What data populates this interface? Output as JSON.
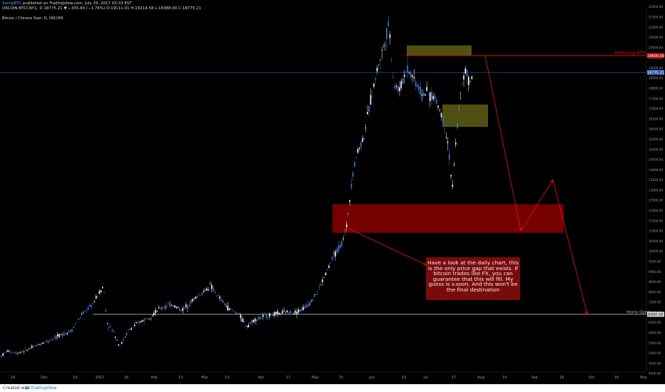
{
  "header": {
    "author": "SwingBTC",
    "published": "published on TradingView.com, July 29, 2017 03:33 EST",
    "ticker_line": "OKCOIN:BTCCNY1, D  18775.21 ▼ −335.80 (−1.76%)  O:19111.01 H:19214.58 L:18388.00 C:18775.21",
    "symbol_title": "Bitcoin / Chinese Yuan, D, OKCOIN"
  },
  "annotations": {
    "note": "Have a look at the daily chart, this is the only price gap that exists. If bitcoin trades like FX, you can guarantee that this will fill. My guess is v.soon. And this won't be the final destination",
    "level_label": "Bitstamp ATH",
    "yearly_open_label": "Yearly Open",
    "yearly_open_value": "6900.00",
    "last_price_label": "18775.21",
    "ath_price_label": "19600.00"
  },
  "footer": {
    "created_with": "Created with",
    "brand": "TradingView"
  },
  "colors": {
    "background": "#000000",
    "bull_candle": "#ffffff",
    "bear_candle": "#3a78d8",
    "zone_red": "#8b0000",
    "zone_olive": "#6b6b16",
    "arrow": "#e01010",
    "yearly_open_line": "#cccccc",
    "last_price_line": "#2a5fb0"
  },
  "chart_data": {
    "type": "candlestick",
    "title": "Bitcoin / Chinese Yuan, D, OKCOIN",
    "x_tick_labels": [
      "14",
      "Dec",
      "19",
      "2017",
      "16",
      "Feb",
      "13",
      "Mar",
      "13",
      "Apr",
      "17",
      "May",
      "15",
      "Jun",
      "19",
      "Jul",
      "17",
      "Aug",
      "14",
      "Sep",
      "18",
      "Oct",
      "16",
      "Nov"
    ],
    "y_axis": {
      "min": 4000,
      "max": 22000,
      "step": 500,
      "scale": "linear",
      "position": "right",
      "grid": false
    },
    "last_close": 18775.21,
    "ohlc_last": {
      "open": 19111.01,
      "high": 19214.58,
      "low": 18388.0,
      "close": 18775.21
    },
    "levels": [
      {
        "name": "Bitstamp ATH",
        "value": 19600
      },
      {
        "name": "Yearly Open",
        "value": 6900
      }
    ],
    "zones": [
      {
        "kind": "price gap",
        "color": "red",
        "from": 10900,
        "to": 12300
      },
      {
        "kind": "supply",
        "color": "olive",
        "from": 19600,
        "to": 20100
      },
      {
        "kind": "demand",
        "color": "olive",
        "from": 16100,
        "to": 17200
      }
    ],
    "price_path": [
      [
        0,
        4800
      ],
      [
        10,
        5100
      ],
      [
        25,
        5000
      ],
      [
        40,
        5200
      ],
      [
        60,
        5500
      ],
      [
        80,
        5800
      ],
      [
        100,
        6100
      ],
      [
        115,
        6900
      ],
      [
        130,
        7400
      ],
      [
        145,
        8300
      ],
      [
        150,
        6500
      ],
      [
        160,
        6000
      ],
      [
        168,
        5300
      ],
      [
        180,
        6100
      ],
      [
        195,
        6500
      ],
      [
        210,
        6800
      ],
      [
        225,
        7200
      ],
      [
        240,
        7400
      ],
      [
        255,
        7100
      ],
      [
        270,
        7600
      ],
      [
        285,
        8000
      ],
      [
        295,
        8300
      ],
      [
        305,
        7800
      ],
      [
        320,
        7200
      ],
      [
        335,
        6900
      ],
      [
        345,
        6300
      ],
      [
        355,
        6600
      ],
      [
        370,
        6800
      ],
      [
        385,
        6900
      ],
      [
        400,
        7000
      ],
      [
        415,
        7000
      ],
      [
        430,
        7300
      ],
      [
        445,
        8000
      ],
      [
        458,
        9000
      ],
      [
        468,
        9800
      ],
      [
        478,
        10300
      ],
      [
        486,
        11200
      ],
      [
        493,
        13500
      ],
      [
        500,
        14800
      ],
      [
        510,
        15600
      ],
      [
        520,
        17500
      ],
      [
        530,
        19100
      ],
      [
        538,
        20100
      ],
      [
        545,
        21200
      ],
      [
        552,
        18200
      ],
      [
        560,
        17900
      ],
      [
        570,
        19000
      ],
      [
        580,
        18500
      ],
      [
        590,
        17800
      ],
      [
        600,
        17700
      ],
      [
        610,
        17500
      ],
      [
        620,
        16600
      ],
      [
        628,
        15300
      ],
      [
        634,
        13000
      ],
      [
        640,
        15800
      ],
      [
        645,
        17600
      ],
      [
        652,
        18900
      ],
      [
        658,
        18200
      ],
      [
        663,
        18800
      ]
    ],
    "projection": [
      {
        "date": "Jul 29",
        "value": 19600
      },
      {
        "date": "Aug 19",
        "value": 11000
      },
      {
        "date": "Sep 2",
        "value": 13500
      },
      {
        "date": "Sep 28",
        "value": 6900
      }
    ]
  }
}
